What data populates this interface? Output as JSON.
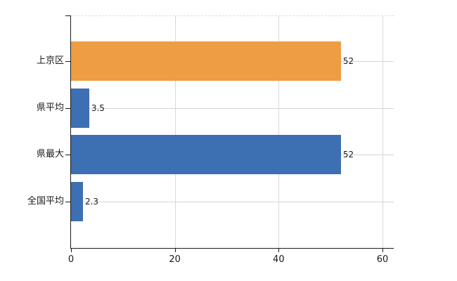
{
  "chart_data": {
    "type": "bar",
    "orientation": "horizontal",
    "title": "",
    "xlabel": "",
    "ylabel": "",
    "categories": [
      "上京区",
      "県平均",
      "県最大",
      "全国平均"
    ],
    "values": [
      52,
      3.5,
      52,
      2.3
    ],
    "value_labels": [
      "52",
      "3.5",
      "52",
      "2.3"
    ],
    "x_ticks": [
      0,
      20,
      40,
      60
    ],
    "x_tick_labels": [
      "0",
      "20",
      "40",
      "60"
    ],
    "xlim": [
      0,
      62.3
    ],
    "grid": true,
    "legend_position": "none",
    "bar_colors": [
      "#ee9d42",
      "#3d6fb3",
      "#3d6fb3",
      "#3d6fb3"
    ],
    "colors": {
      "accent_orange": "#ee9d42",
      "accent_blue": "#3d6fb3",
      "gridline_horizontal": "#d2d6d2",
      "gridline_vertical": "#d8d8d8",
      "plot_top_border": "#dcdcdc",
      "axis": "#1a1a1a",
      "text": "#1a1a1a",
      "background": "#ffffff"
    }
  }
}
